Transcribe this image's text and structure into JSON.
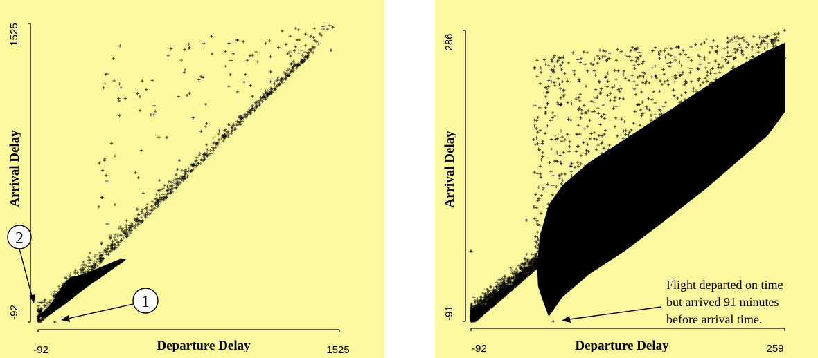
{
  "chart_data": [
    {
      "type": "scatter",
      "xlabel": "Departure Delay",
      "ylabel": "Arrival Delay",
      "xlim": [
        -92,
        1525
      ],
      "ylim": [
        -92,
        1525
      ],
      "x_tick_labels": [
        "-92",
        "1525"
      ],
      "y_tick_labels": [
        "-92",
        "1525"
      ],
      "background_color": "#fcf8a0",
      "point_color": "#000000",
      "grid": false,
      "callouts": [
        {
          "label": "1",
          "points_to": [
            -2,
            -92
          ]
        },
        {
          "label": "2",
          "points_to": [
            -92,
            -60
          ]
        }
      ],
      "series": [
        {
          "values_sample": [
            [
              -92,
              -60
            ],
            [
              -2,
              -92
            ],
            [
              100,
              120
            ],
            [
              250,
              270
            ],
            [
              400,
              420
            ],
            [
              600,
              620
            ],
            [
              800,
              815
            ],
            [
              1000,
              1010
            ],
            [
              1120,
              1130
            ],
            [
              1160,
              1150
            ],
            [
              1390,
              1499
            ],
            [
              1480,
              1380
            ]
          ]
        }
      ]
    },
    {
      "type": "scatter",
      "xlabel": "Departure Delay",
      "ylabel": "Arrival Delay",
      "xlim": [
        -92,
        259
      ],
      "ylim": [
        -91,
        286
      ],
      "x_tick_labels": [
        "-92",
        "259"
      ],
      "y_tick_labels": [
        "-91",
        "286"
      ],
      "background_color": "#fcf8a0",
      "point_color": "#000000",
      "grid": false,
      "annotation": {
        "lines": [
          "Flight departed on time",
          "but arrived 91 minutes",
          "before arrival time."
        ],
        "points_to": [
          0,
          -91
        ]
      },
      "series": [
        {
          "values_sample": [
            [
              -92,
              0
            ],
            [
              -30,
              40
            ],
            [
              0,
              -91
            ],
            [
              0,
              0
            ],
            [
              50,
              60
            ],
            [
              100,
              110
            ],
            [
              150,
              160
            ],
            [
              200,
              210
            ],
            [
              259,
              286
            ],
            [
              259,
              250
            ]
          ]
        }
      ]
    }
  ]
}
